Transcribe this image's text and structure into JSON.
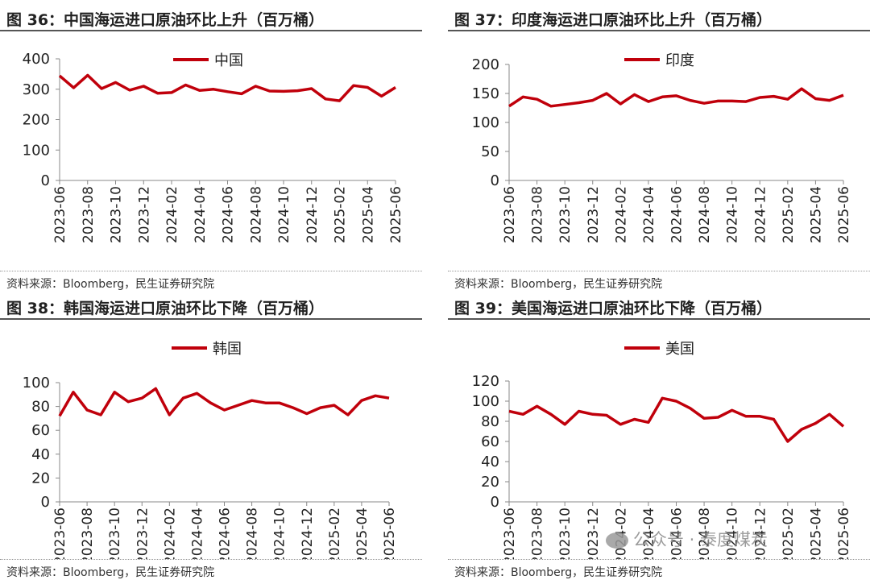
{
  "panels": [
    {
      "title": "图 36：中国海运进口原油环比上升（百万桶）",
      "source": "资料来源：Bloomberg，民生证券研究院",
      "chart_data": {
        "type": "line",
        "categories": [
          "2023-06",
          "2023-07",
          "2023-08",
          "2023-09",
          "2023-10",
          "2023-11",
          "2023-12",
          "2024-01",
          "2024-02",
          "2024-03",
          "2024-04",
          "2024-05",
          "2024-06",
          "2024-07",
          "2024-08",
          "2024-09",
          "2024-10",
          "2024-11",
          "2024-12",
          "2025-01",
          "2025-02",
          "2025-03",
          "2025-04",
          "2025-05",
          "2025-06"
        ],
        "tick_labels": [
          "2023-06",
          "2023-08",
          "2023-10",
          "2023-12",
          "2024-02",
          "2024-04",
          "2024-06",
          "2024-08",
          "2024-10",
          "2024-12",
          "2025-02",
          "2025-04",
          "2025-06"
        ],
        "series": [
          {
            "name": "中国",
            "color": "#c0000b",
            "values": [
              344,
              305,
              346,
              302,
              322,
              297,
              310,
              287,
              289,
              314,
              296,
              300,
              292,
              285,
              310,
              294,
              293,
              295,
              302,
              268,
              262,
              312,
              306,
              277,
              306
            ]
          }
        ],
        "ylim": [
          0,
          400
        ],
        "yticks": [
          0,
          100,
          200,
          300,
          400
        ],
        "legend_position": "top-center",
        "grid": false
      }
    },
    {
      "title": "图 37：印度海运进口原油环比上升（百万桶）",
      "source": "资料来源：Bloomberg，民生证券研究院",
      "chart_data": {
        "type": "line",
        "categories": [
          "2023-06",
          "2023-07",
          "2023-08",
          "2023-09",
          "2023-10",
          "2023-11",
          "2023-12",
          "2024-01",
          "2024-02",
          "2024-03",
          "2024-04",
          "2024-05",
          "2024-06",
          "2024-07",
          "2024-08",
          "2024-09",
          "2024-10",
          "2024-11",
          "2024-12",
          "2025-01",
          "2025-02",
          "2025-03",
          "2025-04",
          "2025-05",
          "2025-06"
        ],
        "tick_labels": [
          "2023-06",
          "2023-08",
          "2023-10",
          "2023-12",
          "2024-02",
          "2024-04",
          "2024-06",
          "2024-08",
          "2024-10",
          "2024-12",
          "2025-02",
          "2025-04",
          "2025-06"
        ],
        "series": [
          {
            "name": "印度",
            "color": "#c0000b",
            "values": [
              128,
              144,
              140,
              128,
              131,
              134,
              138,
              150,
              132,
              148,
              136,
              144,
              146,
              138,
              133,
              137,
              137,
              136,
              143,
              145,
              140,
              158,
              141,
              138,
              147
            ]
          }
        ],
        "ylim": [
          0,
          200
        ],
        "yticks": [
          0,
          50,
          100,
          150,
          200
        ],
        "legend_position": "top-center",
        "grid": false
      }
    },
    {
      "title": "图 38：韩国海运进口原油环比下降（百万桶）",
      "source": "资料来源：Bloomberg，民生证券研究院",
      "chart_data": {
        "type": "line",
        "categories": [
          "2023-06",
          "2023-07",
          "2023-08",
          "2023-09",
          "2023-10",
          "2023-11",
          "2023-12",
          "2024-01",
          "2024-02",
          "2024-03",
          "2024-04",
          "2024-05",
          "2024-06",
          "2024-07",
          "2024-08",
          "2024-09",
          "2024-10",
          "2024-11",
          "2024-12",
          "2025-01",
          "2025-02",
          "2025-03",
          "2025-04",
          "2025-05",
          "2025-06"
        ],
        "tick_labels": [
          "2023-06",
          "2023-08",
          "2023-10",
          "2023-12",
          "2024-02",
          "2024-04",
          "2024-06",
          "2024-08",
          "2024-10",
          "2024-12",
          "2025-02",
          "2025-04",
          "2025-06"
        ],
        "series": [
          {
            "name": "韩国",
            "color": "#c0000b",
            "values": [
              72,
              92,
              77,
              73,
              92,
              84,
              87,
              95,
              73,
              87,
              91,
              83,
              77,
              81,
              85,
              83,
              83,
              79,
              74,
              79,
              81,
              73,
              85,
              89,
              87
            ]
          }
        ],
        "ylim": [
          0,
          100
        ],
        "yticks": [
          0,
          20,
          40,
          60,
          80,
          100
        ],
        "legend_position": "top-center",
        "grid": false
      }
    },
    {
      "title": "图 39：美国海运进口原油环比下降（百万桶）",
      "source": "资料来源：Bloomberg，民生证券研究院",
      "chart_data": {
        "type": "line",
        "categories": [
          "2023-06",
          "2023-07",
          "2023-08",
          "2023-09",
          "2023-10",
          "2023-11",
          "2023-12",
          "2024-01",
          "2024-02",
          "2024-03",
          "2024-04",
          "2024-05",
          "2024-06",
          "2024-07",
          "2024-08",
          "2024-09",
          "2024-10",
          "2024-11",
          "2024-12",
          "2025-01",
          "2025-02",
          "2025-03",
          "2025-04",
          "2025-05",
          "2025-06"
        ],
        "tick_labels": [
          "2023-06",
          "2023-08",
          "2023-10",
          "2023-12",
          "2024-02",
          "2024-04",
          "2024-06",
          "2024-08",
          "2024-10",
          "2024-12",
          "2025-02",
          "2025-04",
          "2025-06"
        ],
        "series": [
          {
            "name": "美国",
            "color": "#c0000b",
            "values": [
              90,
              87,
              95,
              87,
              77,
              90,
              87,
              86,
              77,
              82,
              79,
              103,
              100,
              93,
              83,
              84,
              91,
              85,
              85,
              82,
              60,
              72,
              78,
              87,
              75
            ]
          }
        ],
        "ylim": [
          0,
          120
        ],
        "yticks": [
          0,
          20,
          40,
          60,
          80,
          100,
          120
        ],
        "legend_position": "top-center",
        "grid": false
      }
    }
  ],
  "watermark": "公众号 · 泰度煤炭"
}
